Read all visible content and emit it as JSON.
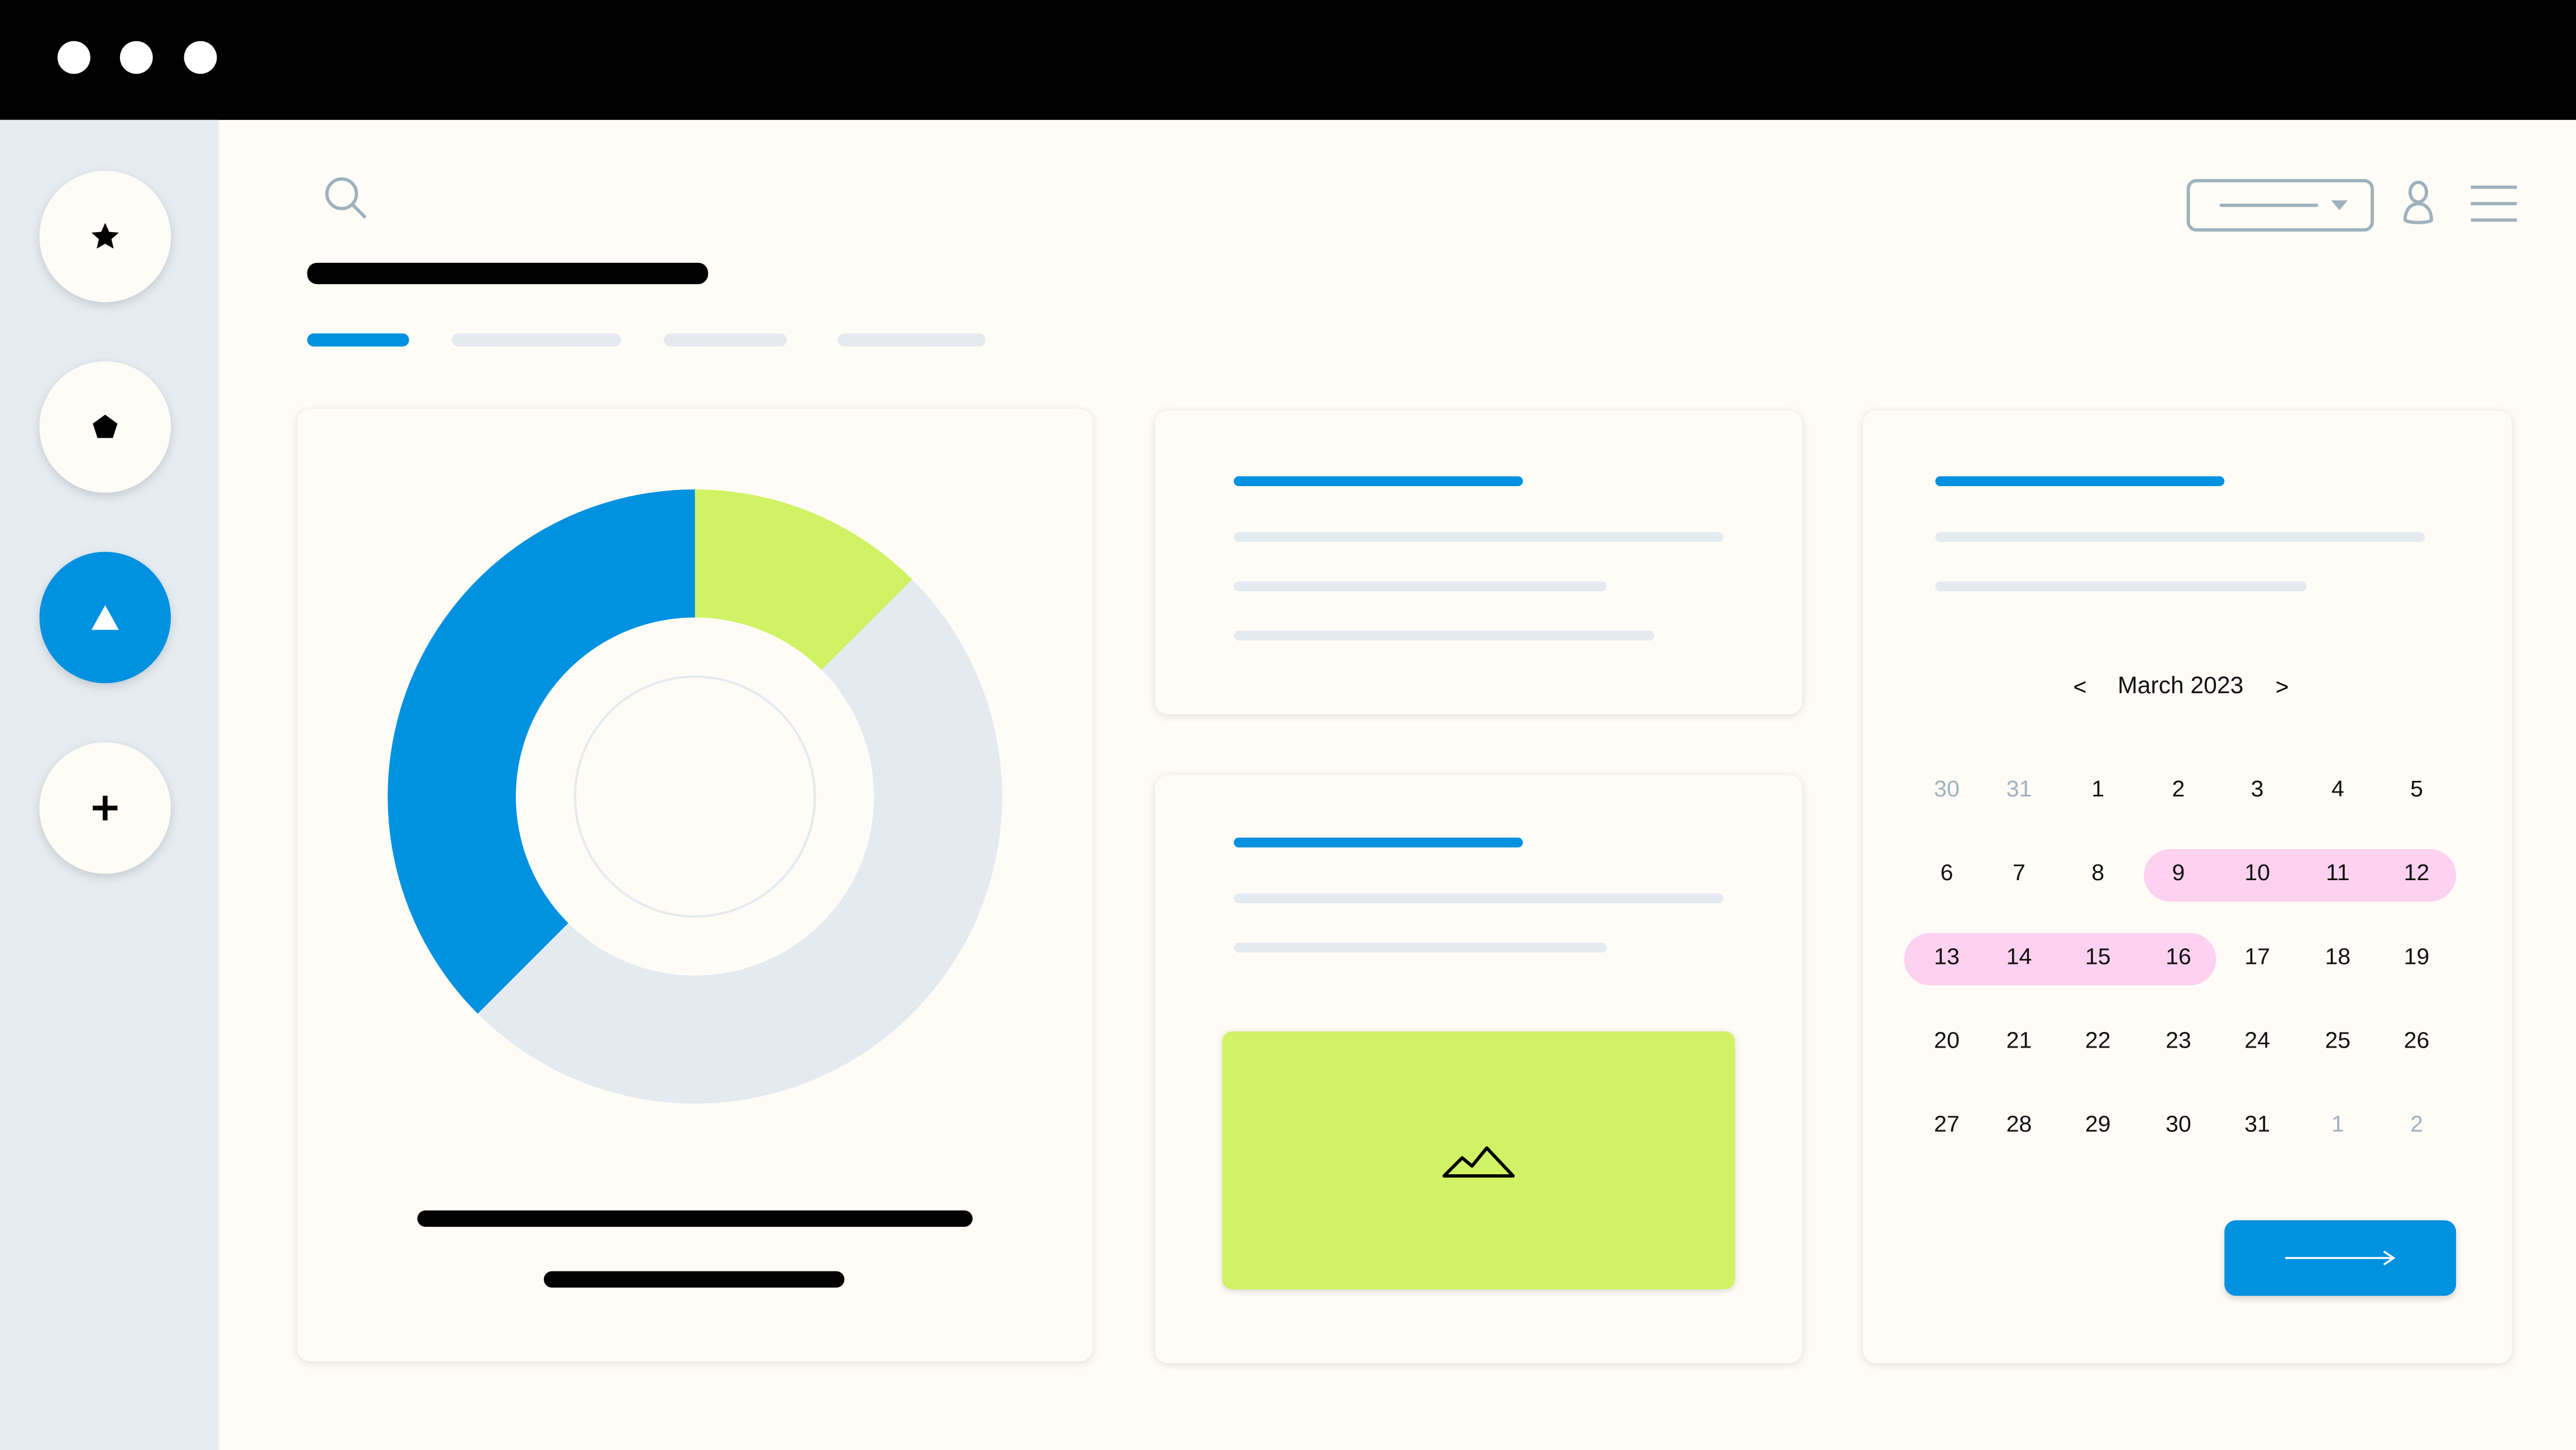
{
  "window": {
    "controls": [
      "close",
      "minimize",
      "maximize"
    ]
  },
  "sidebar": {
    "items": [
      {
        "icon": "star-icon",
        "active": false
      },
      {
        "icon": "pentagon-icon",
        "active": false
      },
      {
        "icon": "triangle-icon",
        "active": true
      },
      {
        "icon": "plus-icon",
        "active": false
      }
    ]
  },
  "header": {
    "search_icon": "search-icon",
    "dropdown_icon": "chevron-down-icon",
    "user_icon": "user-icon",
    "menu_icon": "hamburger-menu-icon"
  },
  "tabs": {
    "active_index": 0,
    "count": 4
  },
  "donut": {
    "segments": [
      {
        "color": "#d0f264",
        "fraction": 0.125
      },
      {
        "color": "#e4ebf0",
        "fraction": 0.5
      },
      {
        "color": "#0091e0",
        "fraction": 0.375
      }
    ]
  },
  "media_card": {
    "icon": "image-mountain-icon",
    "color": "#d0f264"
  },
  "calendar": {
    "prev_label": "<",
    "next_label": ">",
    "month_label": "March 2023",
    "weeks": [
      [
        {
          "d": "30",
          "m": true
        },
        {
          "d": "31",
          "m": true
        },
        {
          "d": "1"
        },
        {
          "d": "2"
        },
        {
          "d": "3"
        },
        {
          "d": "4"
        },
        {
          "d": "5"
        }
      ],
      [
        {
          "d": "6"
        },
        {
          "d": "7"
        },
        {
          "d": "8"
        },
        {
          "d": "9",
          "h": true
        },
        {
          "d": "10",
          "h": true
        },
        {
          "d": "11",
          "h": true
        },
        {
          "d": "12",
          "h": true
        }
      ],
      [
        {
          "d": "13",
          "h": true
        },
        {
          "d": "14",
          "h": true
        },
        {
          "d": "15",
          "h": true
        },
        {
          "d": "16",
          "h": true
        },
        {
          "d": "17"
        },
        {
          "d": "18"
        },
        {
          "d": "19"
        }
      ],
      [
        {
          "d": "20"
        },
        {
          "d": "21"
        },
        {
          "d": "22"
        },
        {
          "d": "23"
        },
        {
          "d": "24"
        },
        {
          "d": "25"
        },
        {
          "d": "26"
        }
      ],
      [
        {
          "d": "27"
        },
        {
          "d": "28"
        },
        {
          "d": "29"
        },
        {
          "d": "30"
        },
        {
          "d": "31"
        },
        {
          "d": "1",
          "m": true
        },
        {
          "d": "2",
          "m": true
        }
      ]
    ],
    "next_button_icon": "arrow-right-icon"
  },
  "colors": {
    "accent": "#0091e0",
    "lime": "#d0f264",
    "highlight": "#fdd1f0",
    "muted": "#9cb2bd",
    "placeholder": "#e4ebf0",
    "background": "#fffcf7",
    "sidebar": "#e5edf2"
  }
}
